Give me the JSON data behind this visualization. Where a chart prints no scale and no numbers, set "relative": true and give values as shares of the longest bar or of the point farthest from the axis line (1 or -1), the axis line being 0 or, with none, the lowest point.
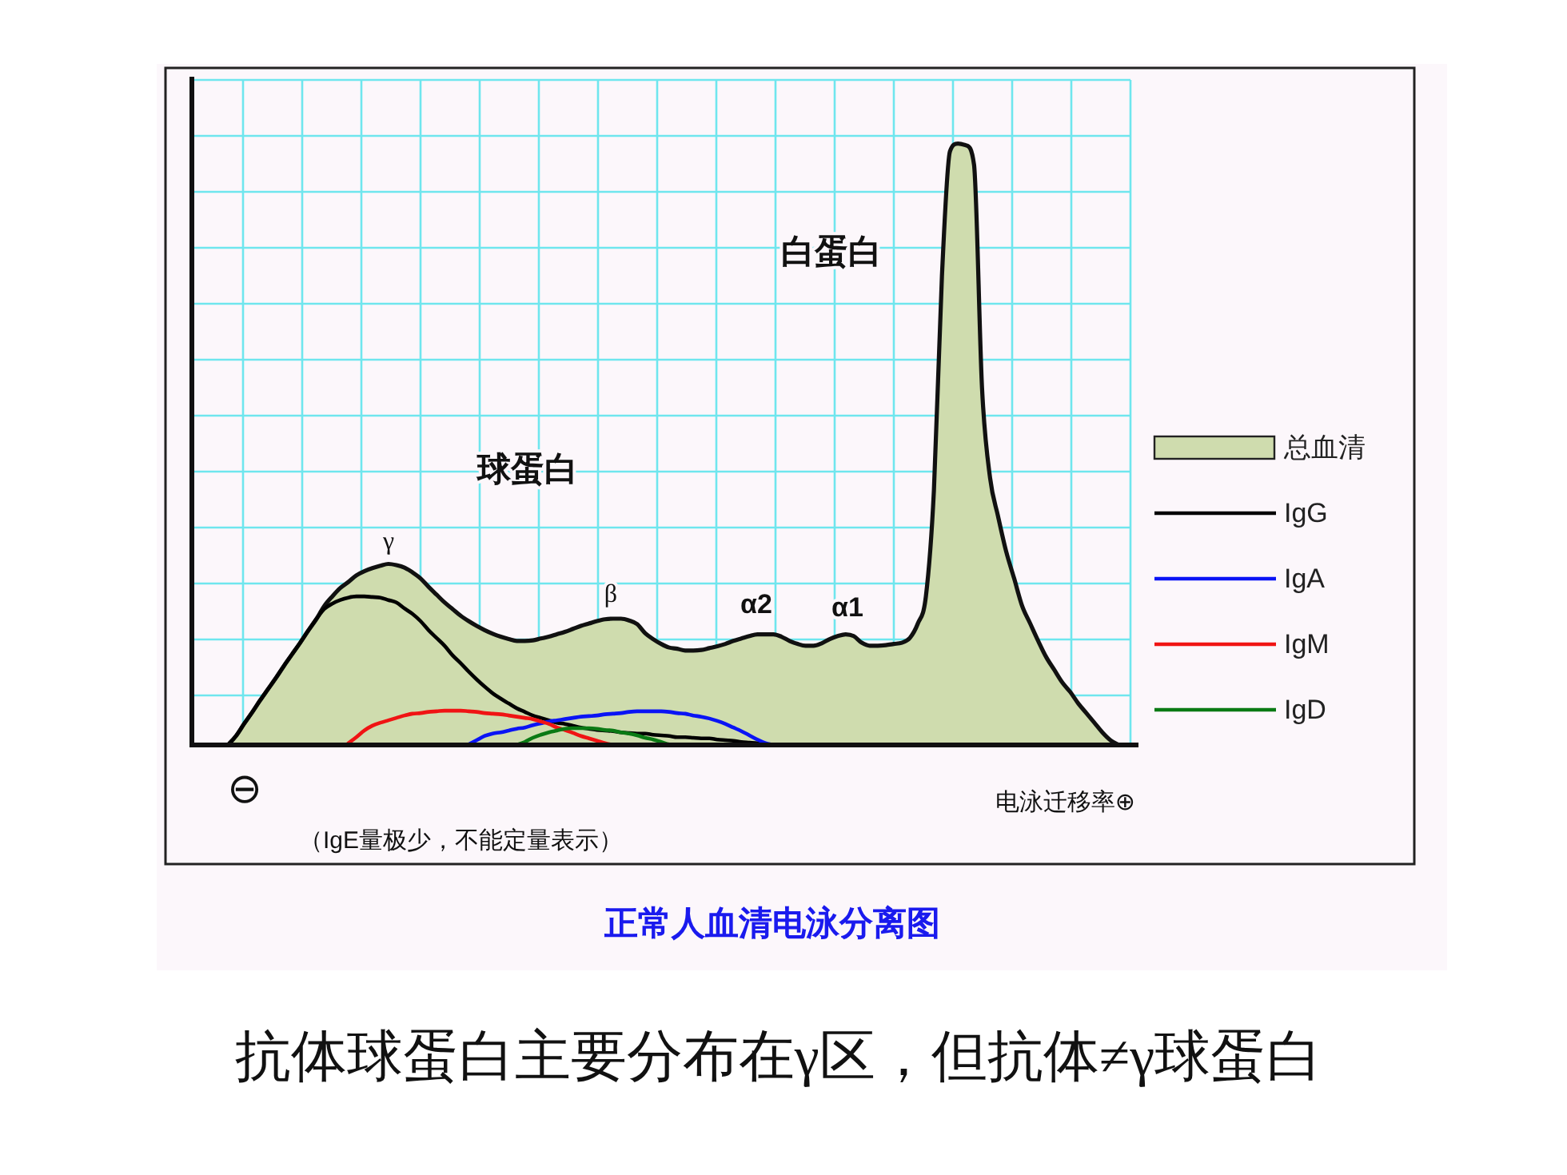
{
  "chart_data": {
    "type": "line",
    "title": "正常人血清电泳分离图",
    "relative": true,
    "grid": true,
    "legend": "right",
    "annotations": [
      "白蛋白",
      "球蛋白",
      "γ",
      "β",
      "α2",
      "α1",
      "⊖",
      "电泳迁移率⊕",
      "（IgE量极少，不能定量表示）",
      "抗体球蛋白主要分布在γ区，但抗体≠γ球蛋白"
    ],
    "categories": [
      null,
      null,
      null,
      null,
      null,
      null,
      null,
      null,
      null,
      null,
      null,
      null,
      null,
      null,
      null,
      null,
      null,
      null,
      null,
      null,
      null,
      null,
      null,
      null,
      null,
      null,
      null,
      null,
      null,
      null,
      null,
      null,
      null,
      null,
      null,
      null,
      null,
      null,
      null,
      null,
      null,
      null,
      null,
      null,
      null,
      null,
      null,
      null,
      null,
      null,
      null,
      null,
      null,
      null,
      null,
      null,
      null,
      null,
      null,
      null,
      null,
      null,
      null,
      null,
      null,
      null,
      null,
      null,
      null,
      null,
      null,
      null,
      null,
      null,
      null,
      null,
      null,
      null,
      null,
      null,
      null,
      null,
      null,
      null,
      null,
      null,
      null,
      null,
      null,
      null,
      null,
      null,
      null,
      null,
      null,
      null,
      null,
      null,
      null,
      null,
      null,
      null,
      null,
      null,
      null,
      null,
      null,
      null,
      null,
      null,
      null,
      null,
      null,
      null,
      null,
      null,
      null,
      null
    ],
    "series": [
      {
        "name": "总血清",
        "type": "area",
        "color": "#cfdcae",
        "values": [
          null,
          null,
          null,
          null,
          0,
          0.015,
          0.035,
          0.054,
          0.074,
          0.093,
          0.112,
          0.132,
          0.151,
          0.17,
          0.19,
          0.209,
          0.231,
          0.247,
          0.261,
          0.271,
          0.282,
          0.289,
          0.294,
          0.298,
          0.301,
          0.299,
          0.295,
          0.287,
          0.277,
          0.263,
          0.25,
          0.237,
          0.226,
          0.215,
          0.206,
          0.198,
          0.191,
          0.185,
          0.18,
          0.176,
          0.173,
          0.173,
          0.174,
          0.177,
          0.18,
          0.184,
          0.188,
          0.193,
          0.198,
          0.202,
          0.206,
          0.209,
          0.21,
          0.21,
          0.207,
          0.201,
          0.186,
          0.176,
          0.168,
          0.162,
          0.16,
          0.157,
          0.157,
          0.158,
          0.161,
          0.164,
          0.168,
          0.173,
          0.177,
          0.181,
          0.184,
          0.184,
          0.184,
          0.18,
          0.173,
          0.168,
          0.165,
          0.165,
          0.169,
          0.176,
          0.181,
          0.184,
          0.181,
          0.17,
          0.165,
          0.165,
          0.166,
          0.168,
          0.17,
          0.178,
          0.202,
          0.247,
          0.423,
          0.779,
          0.987,
          1,
          0.997,
          0.965,
          0.593,
          0.444,
          0.38,
          0.322,
          0.277,
          0.231,
          0.202,
          0.173,
          0.146,
          0.125,
          0.104,
          0.088,
          0.069,
          0.053,
          0.037,
          0.021,
          0.008,
          0,
          null,
          null
        ]
      },
      {
        "name": "IgG",
        "color": "#000000",
        "values": [
          null,
          null,
          null,
          null,
          0,
          0.015,
          0.035,
          0.054,
          0.074,
          0.093,
          0.112,
          0.132,
          0.151,
          0.17,
          0.19,
          0.209,
          0.226,
          0.235,
          0.241,
          0.245,
          0.247,
          0.247,
          0.246,
          0.245,
          0.241,
          0.237,
          0.227,
          0.218,
          0.206,
          0.191,
          0.178,
          0.165,
          0.149,
          0.136,
          0.122,
          0.109,
          0.097,
          0.086,
          0.077,
          0.069,
          0.061,
          0.055,
          0.049,
          0.045,
          0.041,
          0.037,
          0.035,
          0.032,
          0.029,
          0.027,
          0.025,
          0.024,
          0.023,
          0.021,
          0.02,
          0.019,
          0.019,
          0.017,
          0.016,
          0.015,
          0.013,
          0.013,
          0.012,
          0.011,
          0.011,
          0.009,
          0.008,
          0.007,
          0.005,
          0.004,
          0.003,
          0.001,
          0,
          null,
          null,
          null,
          null,
          null,
          null,
          null,
          null,
          null,
          null,
          null,
          null,
          null,
          null,
          null,
          null,
          null,
          null,
          null,
          null,
          null,
          null,
          null,
          null,
          null,
          null,
          null,
          null,
          null,
          null,
          null,
          null,
          null,
          null,
          null,
          null,
          null,
          null,
          null,
          null,
          null,
          null,
          null,
          null,
          null
        ]
      },
      {
        "name": "IgA",
        "color": "#0a14f5",
        "values": [
          null,
          null,
          null,
          null,
          null,
          null,
          null,
          null,
          null,
          null,
          null,
          null,
          null,
          null,
          null,
          null,
          null,
          null,
          null,
          null,
          null,
          null,
          null,
          null,
          null,
          null,
          null,
          null,
          null,
          null,
          null,
          null,
          null,
          null,
          0.001,
          0.008,
          0.015,
          0.019,
          0.021,
          0.024,
          0.027,
          0.029,
          0.033,
          0.036,
          0.039,
          0.041,
          0.043,
          0.045,
          0.047,
          0.048,
          0.049,
          0.051,
          0.052,
          0.053,
          0.055,
          0.056,
          0.056,
          0.056,
          0.056,
          0.055,
          0.053,
          0.052,
          0.049,
          0.047,
          0.044,
          0.04,
          0.035,
          0.029,
          0.023,
          0.016,
          0.009,
          0.003,
          0,
          null,
          null,
          null,
          null,
          null,
          null,
          null,
          null,
          null,
          null,
          null,
          null,
          null,
          null,
          null,
          null,
          null,
          null,
          null,
          null,
          null,
          null,
          null,
          null,
          null,
          null,
          null,
          null,
          null,
          null,
          null,
          null,
          null,
          null,
          null,
          null,
          null,
          null,
          null,
          null,
          null,
          null,
          null,
          null,
          null
        ]
      },
      {
        "name": "IgM",
        "color": "#f01414",
        "values": [
          null,
          null,
          null,
          null,
          null,
          null,
          null,
          null,
          null,
          null,
          null,
          null,
          null,
          null,
          null,
          null,
          null,
          null,
          null,
          0.003,
          0.013,
          0.024,
          0.032,
          0.037,
          0.041,
          0.045,
          0.049,
          0.052,
          0.053,
          0.055,
          0.056,
          0.057,
          0.057,
          0.057,
          0.056,
          0.055,
          0.053,
          0.052,
          0.051,
          0.049,
          0.047,
          0.045,
          0.043,
          0.039,
          0.035,
          0.029,
          0.025,
          0.02,
          0.015,
          0.011,
          0.007,
          0.003,
          0,
          null,
          null,
          null,
          null,
          null,
          null,
          null,
          null,
          null,
          null,
          null,
          null,
          null,
          null,
          null,
          null,
          null,
          null,
          null,
          null,
          null,
          null,
          null,
          null,
          null,
          null,
          null,
          null,
          null,
          null,
          null,
          null,
          null,
          null,
          null,
          null,
          null,
          null,
          null,
          null,
          null,
          null,
          null,
          null,
          null,
          null,
          null,
          null,
          null,
          null,
          null,
          null,
          null,
          null,
          null,
          null,
          null,
          null,
          null,
          null,
          null,
          null,
          null,
          null,
          null
        ]
      },
      {
        "name": "IgD",
        "color": "#0a7a14",
        "values": [
          null,
          null,
          null,
          null,
          null,
          null,
          null,
          null,
          null,
          null,
          null,
          null,
          null,
          null,
          null,
          null,
          null,
          null,
          null,
          null,
          null,
          null,
          null,
          null,
          null,
          null,
          null,
          null,
          null,
          null,
          null,
          null,
          null,
          null,
          null,
          null,
          null,
          null,
          null,
          null,
          0,
          0.005,
          0.012,
          0.017,
          0.021,
          0.024,
          0.027,
          0.028,
          0.028,
          0.028,
          0.027,
          0.025,
          0.024,
          0.021,
          0.019,
          0.016,
          0.012,
          0.009,
          0.005,
          0.001,
          0,
          null,
          null,
          null,
          null,
          null,
          null,
          null,
          null,
          null,
          null,
          null,
          null,
          null,
          null,
          null,
          null,
          null,
          null,
          null,
          null,
          null,
          null,
          null,
          null,
          null,
          null,
          null,
          null,
          null,
          null,
          null,
          null,
          null,
          null,
          null,
          null,
          null,
          null,
          null,
          null,
          null,
          null,
          null,
          null,
          null,
          null,
          null,
          null,
          null,
          null,
          null,
          null,
          null,
          null,
          null,
          null,
          null
        ]
      }
    ]
  }
}
